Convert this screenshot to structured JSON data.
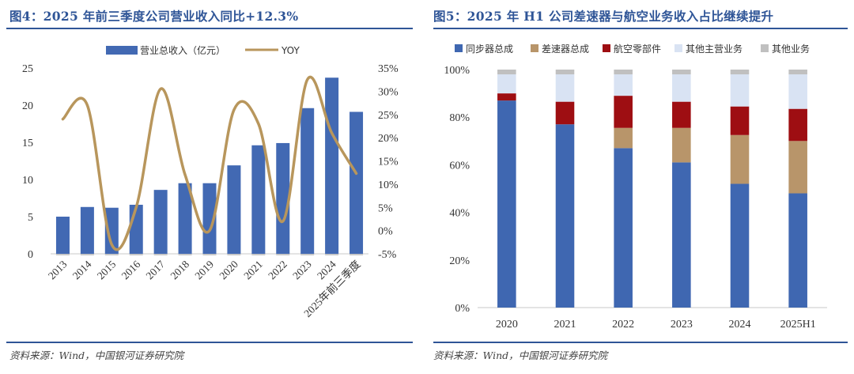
{
  "colors": {
    "title": "#2f5597",
    "bar_blue": "#4269b3",
    "line_gold": "#b8965c",
    "seg_sync": "#3f67b1",
    "seg_diff": "#b8956a",
    "seg_aero": "#9e0e12",
    "seg_other_main": "#d9e3f3",
    "seg_other": "#c0c0c0"
  },
  "left": {
    "title": "图4：2025 年前三季度公司营业收入同比+12.3%",
    "source": "资料来源：Wind，中国银河证券研究院"
  },
  "right": {
    "title": "图5：2025 年 H1 公司差速器与航空业务收入占比继续提升",
    "source": "资料来源：Wind，中国银河证券研究院"
  },
  "chart_data": [
    {
      "type": "bar",
      "secondary_type": "line",
      "title": "2025 年前三季度公司营业收入同比+12.3%",
      "categories": [
        "2013",
        "2014",
        "2015",
        "2016",
        "2017",
        "2018",
        "2019",
        "2020",
        "2021",
        "2022",
        "2023",
        "2024",
        "2025年前三季度"
      ],
      "series": [
        {
          "name": "营业总收入（亿元）",
          "axis": "left",
          "kind": "bar",
          "values": [
            5.0,
            6.3,
            6.2,
            6.6,
            8.6,
            9.5,
            9.5,
            11.9,
            14.6,
            14.9,
            19.6,
            23.7,
            19.1
          ]
        },
        {
          "name": "YOY",
          "axis": "right",
          "kind": "line",
          "values": [
            24.0,
            27.0,
            -3.0,
            5.0,
            30.5,
            12.0,
            0.0,
            26.0,
            23.0,
            2.0,
            32.5,
            21.0,
            12.3
          ]
        }
      ],
      "y_left": {
        "min": 0,
        "max": 25,
        "ticks": [
          "0",
          "5",
          "10",
          "15",
          "20",
          "25"
        ]
      },
      "y_right": {
        "min": -5,
        "max": 35,
        "ticks": [
          "-5%",
          "0%",
          "5%",
          "10%",
          "15%",
          "20%",
          "25%",
          "30%",
          "35%"
        ]
      },
      "legend_position": "top"
    },
    {
      "type": "bar",
      "stacked": true,
      "title": "2025 年 H1 公司差速器与航空业务收入占比继续提升",
      "categories": [
        "2020",
        "2021",
        "2022",
        "2023",
        "2024",
        "2025H1"
      ],
      "series": [
        {
          "name": "同步器总成",
          "values": [
            87,
            77,
            67,
            61,
            52,
            48
          ]
        },
        {
          "name": "差速器总成",
          "values": [
            0,
            0,
            8.5,
            14.5,
            20.5,
            22
          ]
        },
        {
          "name": "航空零部件",
          "values": [
            3,
            9.5,
            13.5,
            11,
            12,
            13.5
          ]
        },
        {
          "name": "其他主营业务",
          "values": [
            8,
            11.5,
            9,
            11.5,
            13.5,
            14.5
          ]
        },
        {
          "name": "其他业务",
          "values": [
            2,
            2,
            2,
            2,
            2,
            2
          ]
        }
      ],
      "y": {
        "min": 0,
        "max": 100,
        "ticks": [
          "0%",
          "20%",
          "40%",
          "60%",
          "80%",
          "100%"
        ]
      },
      "legend_position": "top"
    }
  ]
}
